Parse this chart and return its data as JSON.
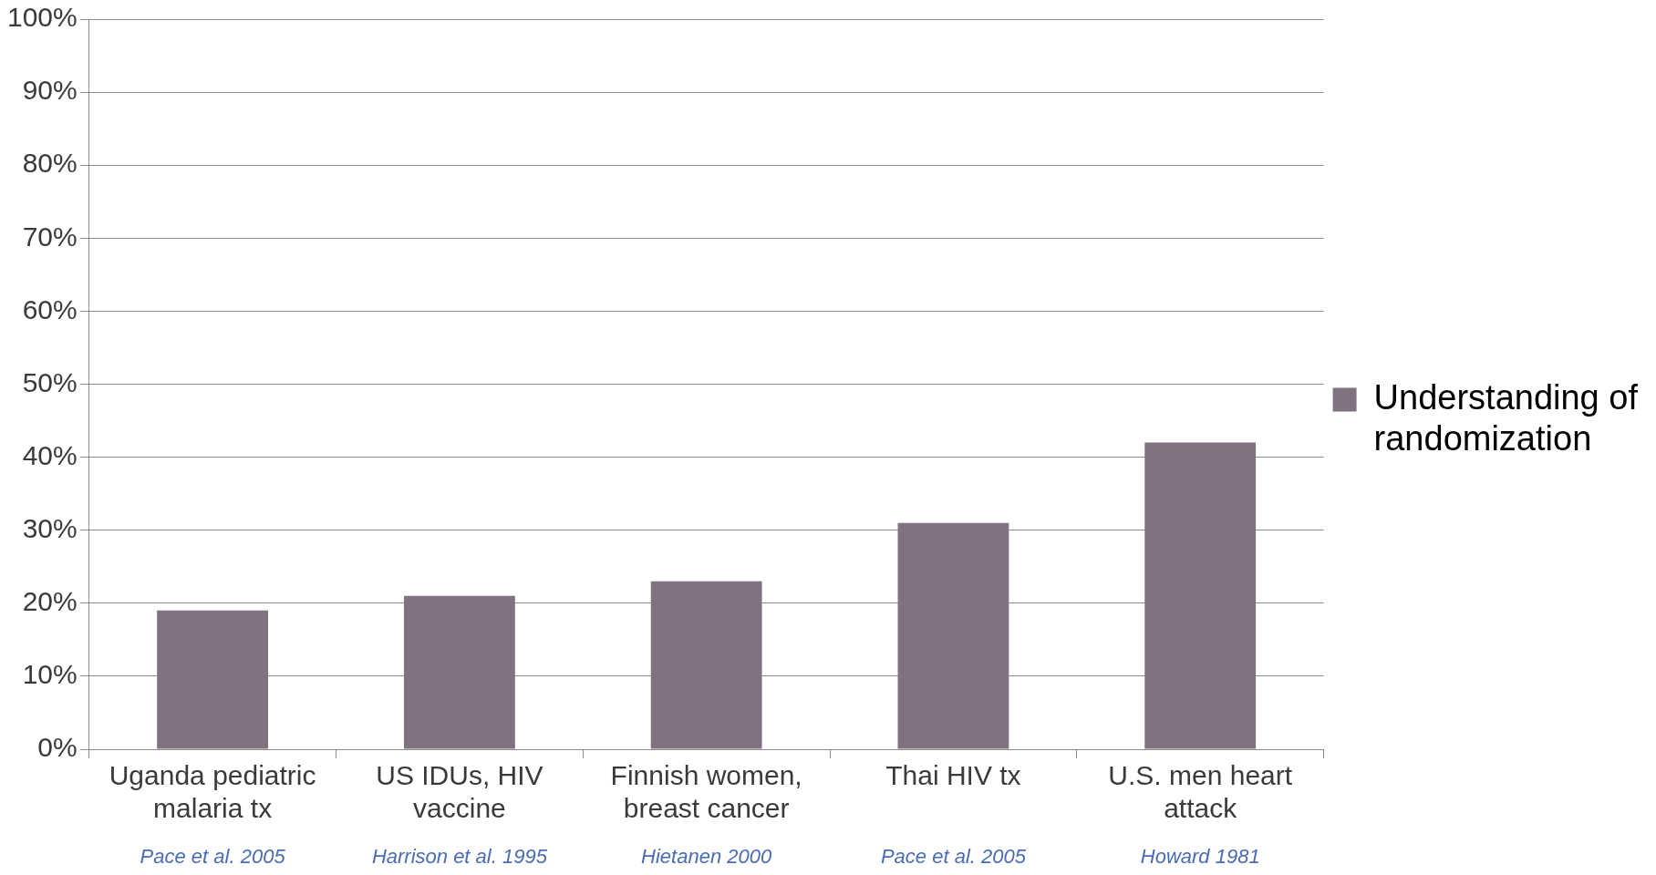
{
  "chart_data": {
    "type": "bar",
    "categories": [
      "Uganda pediatric malaria tx",
      "US IDUs, HIV vaccine",
      "Finnish women, breast cancer",
      "Thai HIV tx",
      "U.S. men heart attack"
    ],
    "series": [
      {
        "name": "Understanding of randomization",
        "color": "#80737f",
        "values": [
          19,
          21,
          23,
          31,
          42
        ]
      }
    ],
    "ylim": [
      0,
      100
    ],
    "yticks": [
      {
        "value": 0,
        "label": "0%"
      },
      {
        "value": 10,
        "label": "10%"
      },
      {
        "value": 20,
        "label": "20%"
      },
      {
        "value": 30,
        "label": "30%"
      },
      {
        "value": 40,
        "label": "40%"
      },
      {
        "value": 50,
        "label": "50%"
      },
      {
        "value": 60,
        "label": "60%"
      },
      {
        "value": 70,
        "label": "70%"
      },
      {
        "value": 80,
        "label": "80%"
      },
      {
        "value": 90,
        "label": "90%"
      },
      {
        "value": 100,
        "label": "100%"
      }
    ],
    "grid": "y",
    "legend": "right",
    "annotations": [
      "Pace et al. 2005",
      "Harrison et al. 1995",
      "Hietanen 2000",
      "Pace et al. 2005",
      "Howard 1981"
    ]
  }
}
